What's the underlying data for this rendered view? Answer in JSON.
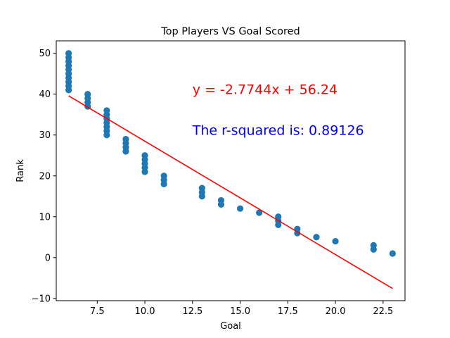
{
  "chart_data": {
    "type": "scatter",
    "title": "Top Players VS Goal Scored",
    "xlabel": "Goal",
    "ylabel": "Rank",
    "xlim": [
      5.35,
      23.65
    ],
    "ylim": [
      -10.55,
      53.05
    ],
    "xticks": [
      7.5,
      10.0,
      12.5,
      15.0,
      17.5,
      20.0,
      22.5
    ],
    "xtick_labels": [
      "7.5",
      "10.0",
      "12.5",
      "15.0",
      "17.5",
      "20.0",
      "22.5"
    ],
    "yticks": [
      -10,
      0,
      10,
      20,
      30,
      40,
      50
    ],
    "ytick_labels": [
      "−10",
      "0",
      "10",
      "20",
      "30",
      "40",
      "50"
    ],
    "grid": false,
    "points": [
      [
        6,
        50
      ],
      [
        6,
        49
      ],
      [
        6,
        48
      ],
      [
        6,
        47
      ],
      [
        6,
        46
      ],
      [
        6,
        45
      ],
      [
        6,
        44
      ],
      [
        6,
        43
      ],
      [
        6,
        42
      ],
      [
        6,
        41
      ],
      [
        7,
        40
      ],
      [
        7,
        39
      ],
      [
        7,
        38
      ],
      [
        7,
        37
      ],
      [
        8,
        36
      ],
      [
        8,
        35
      ],
      [
        8,
        34
      ],
      [
        8,
        33
      ],
      [
        8,
        32
      ],
      [
        8,
        31
      ],
      [
        8,
        30
      ],
      [
        9,
        29
      ],
      [
        9,
        28
      ],
      [
        9,
        27
      ],
      [
        9,
        26
      ],
      [
        10,
        25
      ],
      [
        10,
        24
      ],
      [
        10,
        23
      ],
      [
        10,
        22
      ],
      [
        10,
        21
      ],
      [
        11,
        20
      ],
      [
        11,
        19
      ],
      [
        11,
        18
      ],
      [
        13,
        17
      ],
      [
        13,
        16
      ],
      [
        13,
        15
      ],
      [
        14,
        14
      ],
      [
        14,
        13
      ],
      [
        15,
        12
      ],
      [
        16,
        11
      ],
      [
        17,
        10
      ],
      [
        17,
        9
      ],
      [
        17,
        8
      ],
      [
        18,
        7
      ],
      [
        18,
        6
      ],
      [
        19,
        5
      ],
      [
        20,
        4
      ],
      [
        22,
        3
      ],
      [
        22,
        2
      ],
      [
        23,
        1
      ]
    ],
    "regression": {
      "slope": -2.7744,
      "intercept": 56.24,
      "x_range": [
        6,
        23
      ]
    },
    "annotations": [
      {
        "text": "y = -2.7744x + 56.24",
        "x": 12.5,
        "y": 40,
        "color": "#ff0000"
      },
      {
        "text": "The r-squared is: 0.89126",
        "x": 12.5,
        "y": 30,
        "color": "#0000ff"
      }
    ],
    "colors": {
      "points": "#1f77b4",
      "line": "#ff0000"
    }
  }
}
